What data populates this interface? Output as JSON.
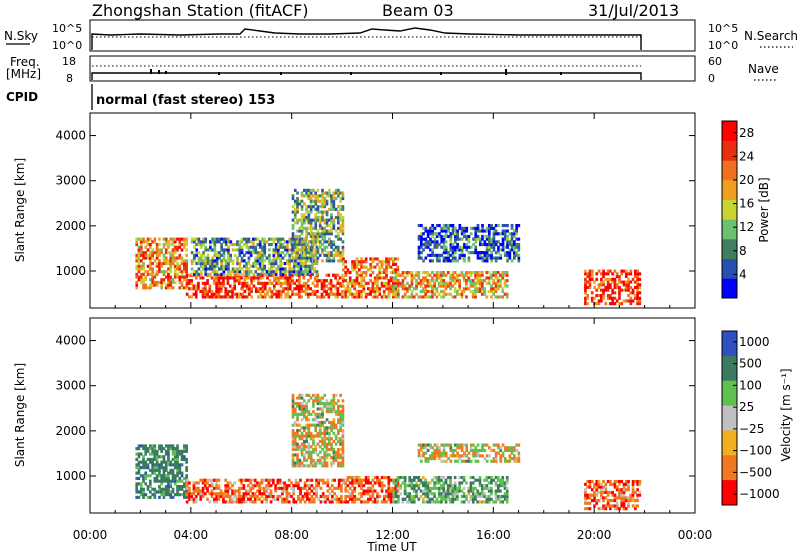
{
  "header": {
    "station": "Zhongshan Station (fitACF)",
    "beam": "Beam 03",
    "date": "31/Jul/2013"
  },
  "nsky_panel": {
    "left_label": "N.Sky",
    "left_ticks": [
      "10^5",
      "10^0"
    ],
    "right_ticks": [
      "10^5",
      "10^0"
    ],
    "right_label": "N.Search"
  },
  "freq_panel": {
    "left_label_line1": "Freq.",
    "left_label_line2": "[MHz]",
    "left_ticks": [
      "18",
      "8"
    ],
    "right_ticks": [
      "60",
      "0"
    ],
    "right_label": "Nave"
  },
  "cpid": {
    "label": "CPID",
    "text": "normal (fast stereo) 153"
  },
  "colors": {
    "power_scale": [
      "#0000ff",
      "#2a4fb0",
      "#3f7f5f",
      "#6cc070",
      "#c8d430",
      "#f0a020",
      "#f07020",
      "#e83010",
      "#ff0000"
    ],
    "velocity_scale": [
      "#3050c0",
      "#3a7a60",
      "#60c050",
      "#c0c0c0",
      "#f0b020",
      "#f07820",
      "#ff0000"
    ]
  },
  "chart_data": [
    {
      "type": "heatmap",
      "title": "Power",
      "ylabel": "Slant Range [km]",
      "ylim": [
        180,
        4500
      ],
      "y_ticks": [
        "1000",
        "2000",
        "3000",
        "4000"
      ],
      "x_ticks": [
        "00:00",
        "04:00",
        "08:00",
        "12:00",
        "16:00",
        "20:00",
        "00:00"
      ],
      "xlim": [
        "00:00",
        "24:00"
      ],
      "colorbar": {
        "label": "Power [dB]",
        "ticks": [
          "4",
          "8",
          "12",
          "16",
          "20",
          "24",
          "28"
        ],
        "range": [
          0,
          30
        ]
      },
      "regions": [
        {
          "t": [
            1.8,
            3.8
          ],
          "r": [
            600,
            1700
          ],
          "value": 20
        },
        {
          "t": [
            3.8,
            6.0
          ],
          "r": [
            400,
            900
          ],
          "value": 26
        },
        {
          "t": [
            6.0,
            10.0
          ],
          "r": [
            400,
            900
          ],
          "value": 24
        },
        {
          "t": [
            4.0,
            9.0
          ],
          "r": [
            900,
            1700
          ],
          "value": 10
        },
        {
          "t": [
            8.0,
            10.0
          ],
          "r": [
            1200,
            2800
          ],
          "value": 12
        },
        {
          "t": [
            10.0,
            12.2
          ],
          "r": [
            400,
            1300
          ],
          "value": 22
        },
        {
          "t": [
            12.0,
            16.5
          ],
          "r": [
            400,
            1000
          ],
          "value": 18
        },
        {
          "t": [
            13.0,
            17.0
          ],
          "r": [
            1200,
            2000
          ],
          "value": 6
        },
        {
          "t": [
            19.6,
            21.8
          ],
          "r": [
            250,
            1000
          ],
          "value": 26
        }
      ]
    },
    {
      "type": "heatmap",
      "title": "Velocity",
      "ylabel": "Slant Range [km]",
      "ylim": [
        180,
        4500
      ],
      "y_ticks": [
        "1000",
        "2000",
        "3000",
        "4000"
      ],
      "x_ticks": [
        "00:00",
        "04:00",
        "08:00",
        "12:00",
        "16:00",
        "20:00",
        "00:00"
      ],
      "xlabel": "Time UT",
      "xlim": [
        "00:00",
        "24:00"
      ],
      "colorbar": {
        "label": "Velocity [m s⁻¹]",
        "ticks": [
          "1000",
          "500",
          "100",
          "25",
          "−25",
          "−100",
          "−500",
          "−1000"
        ]
      },
      "regions": [
        {
          "t": [
            1.8,
            3.8
          ],
          "r": [
            500,
            1700
          ],
          "value": 500
        },
        {
          "t": [
            3.8,
            10.0
          ],
          "r": [
            400,
            900
          ],
          "value": -300
        },
        {
          "t": [
            8.0,
            10.0
          ],
          "r": [
            1200,
            2800
          ],
          "value": 0
        },
        {
          "t": [
            10.0,
            12.2
          ],
          "r": [
            400,
            1000
          ],
          "value": -300
        },
        {
          "t": [
            12.0,
            16.5
          ],
          "r": [
            400,
            1000
          ],
          "value": 300
        },
        {
          "t": [
            13.0,
            17.0
          ],
          "r": [
            1300,
            1700
          ],
          "value": 0
        },
        {
          "t": [
            19.6,
            21.8
          ],
          "r": [
            250,
            900
          ],
          "value": -300
        }
      ]
    }
  ]
}
